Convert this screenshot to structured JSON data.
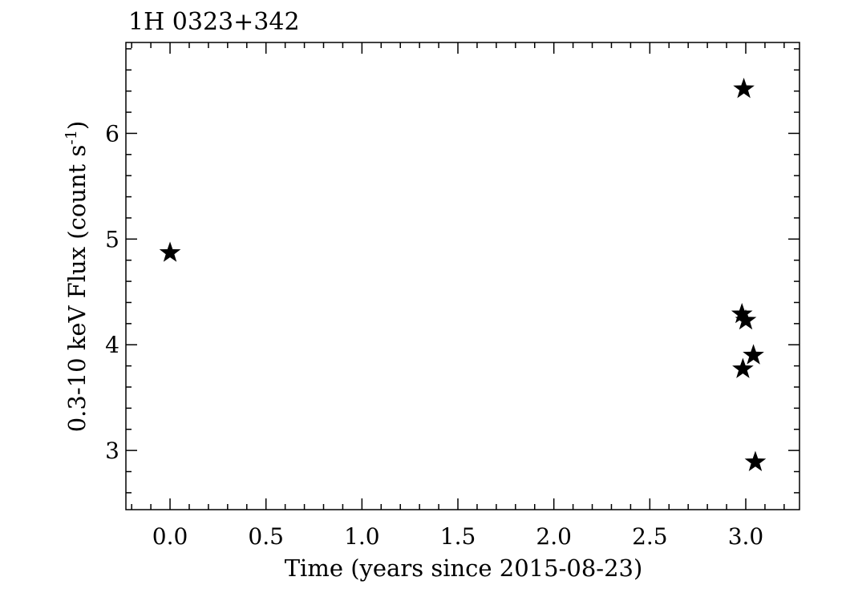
{
  "chart_data": {
    "type": "scatter",
    "title": "1H 0323+342",
    "xlabel": "Time (years since 2015-08-23)",
    "ylabel": "0.3-10 keV Flux (count s",
    "ylabel_superscript": "-1",
    "ylabel_suffix": ")",
    "xlim": [
      -0.23,
      3.28
    ],
    "ylim": [
      2.44,
      6.86
    ],
    "xticks": [
      0.0,
      0.5,
      1.0,
      1.5,
      2.0,
      2.5,
      3.0
    ],
    "xtick_labels": [
      "0.0",
      "0.5",
      "1.0",
      "1.5",
      "2.0",
      "2.5",
      "3.0"
    ],
    "yticks": [
      3,
      4,
      5,
      6
    ],
    "ytick_labels": [
      "3",
      "4",
      "5",
      "6"
    ],
    "grid": false,
    "marker": "star",
    "color": "#000000",
    "series": [
      {
        "x": [
          0.0,
          2.99,
          2.98,
          3.0,
          3.04,
          2.985,
          3.05
        ],
        "y": [
          4.87,
          6.42,
          4.29,
          4.23,
          3.9,
          3.77,
          2.89
        ]
      }
    ]
  }
}
